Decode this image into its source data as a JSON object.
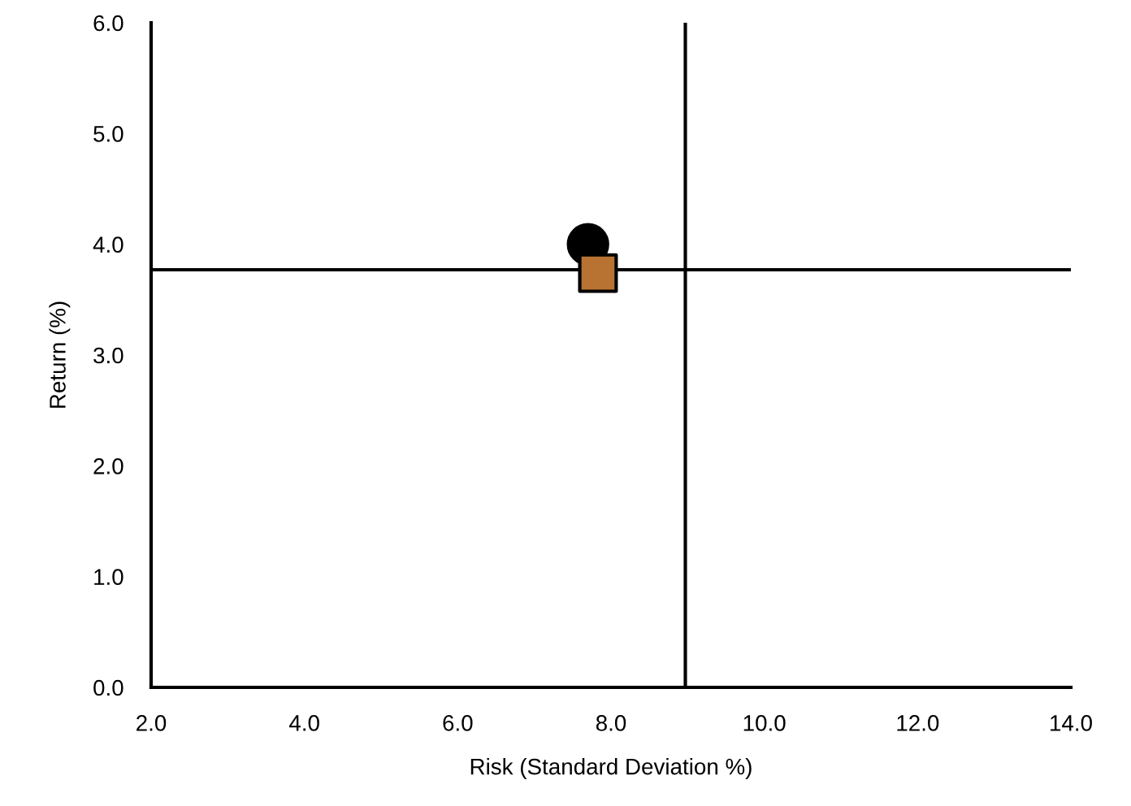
{
  "chart_data": {
    "type": "scatter",
    "xlabel": "Risk (Standard Deviation %)",
    "ylabel": "Return (%)",
    "series": [
      {
        "x": [
          7.7
        ],
        "values": [
          4.0
        ],
        "color": "#000000",
        "marker": "circle"
      },
      {
        "x": [
          7.83
        ],
        "values": [
          3.74
        ],
        "color": "#b87333",
        "marker": "square"
      }
    ],
    "xlim": [
      2.0,
      14.0
    ],
    "ylim": [
      0.0,
      6.0
    ],
    "xticks": [
      {
        "value": 2,
        "label": "2.0"
      },
      {
        "value": 4,
        "label": "4.0"
      },
      {
        "value": 6,
        "label": "6.0"
      },
      {
        "value": 8,
        "label": "8.0"
      },
      {
        "value": 10,
        "label": "10.0"
      },
      {
        "value": 12,
        "label": "12.0"
      },
      {
        "value": 14,
        "label": "14.0"
      }
    ],
    "yticks": [
      {
        "value": 0,
        "label": "0.0"
      },
      {
        "value": 1,
        "label": "1.0"
      },
      {
        "value": 2,
        "label": "2.0"
      },
      {
        "value": 3,
        "label": "3.0"
      },
      {
        "value": 4,
        "label": "4.0"
      },
      {
        "value": 5,
        "label": "5.0"
      },
      {
        "value": 6,
        "label": "6.0"
      }
    ],
    "ref_lines": [
      {
        "axis": "x",
        "value": 8.97,
        "color": "#000000"
      },
      {
        "axis": "y",
        "value": 3.77,
        "color": "#000000"
      }
    ]
  }
}
